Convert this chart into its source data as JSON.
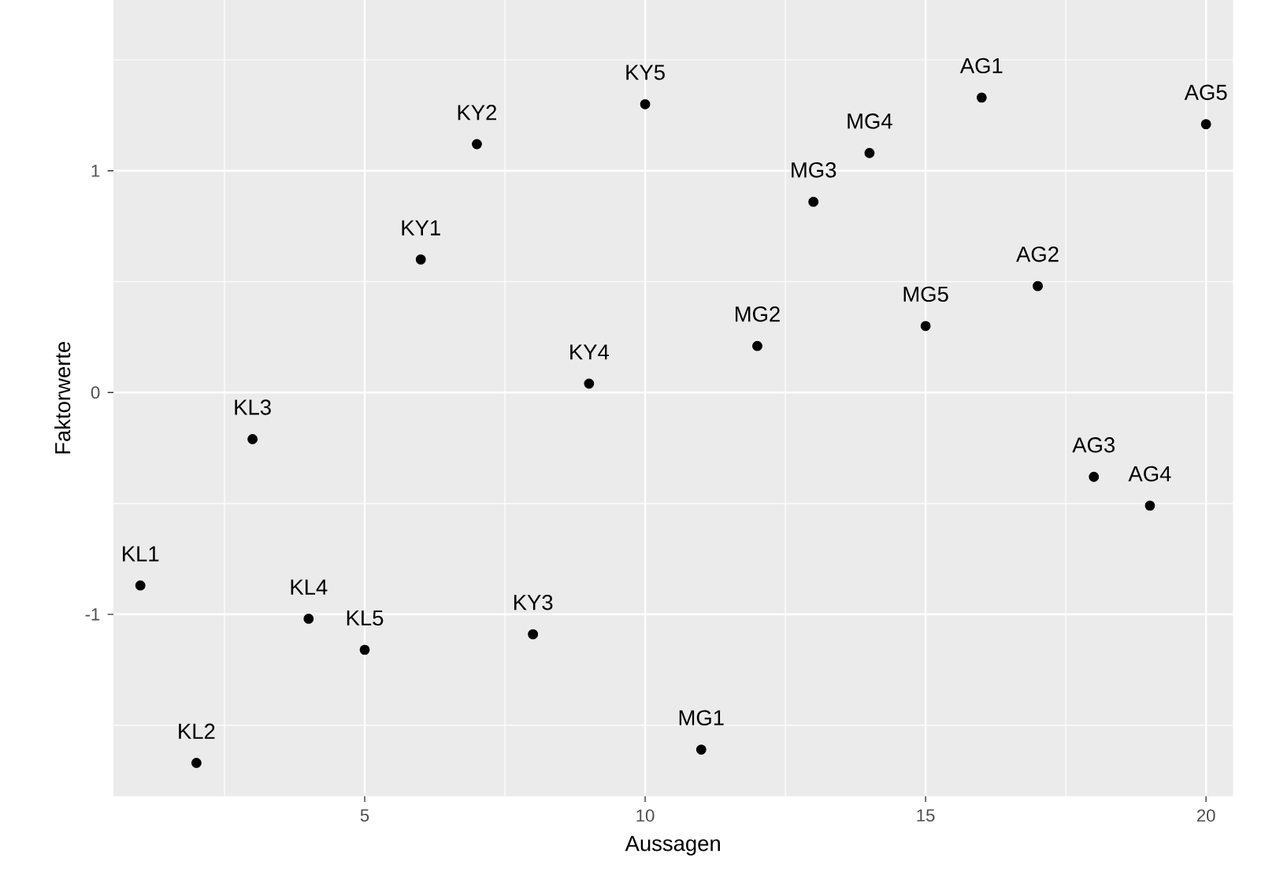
{
  "chart_data": {
    "type": "scatter",
    "xlabel": "Aussagen",
    "ylabel": "Faktorwerte",
    "x": [
      1,
      2,
      3,
      4,
      5,
      6,
      7,
      8,
      9,
      10,
      11,
      12,
      13,
      14,
      15,
      16,
      17,
      18,
      19,
      20
    ],
    "series": [
      {
        "color": "#000000",
        "values": [
          -0.87,
          -1.67,
          -0.21,
          -1.02,
          -1.16,
          0.6,
          1.12,
          -1.09,
          0.04,
          1.3,
          -1.61,
          0.21,
          0.86,
          1.08,
          0.3,
          1.33,
          0.48,
          -0.38,
          -0.51,
          1.21
        ]
      }
    ],
    "xlim": [
      0.52,
      20.48
    ],
    "ylim": [
      -1.82,
      1.77
    ],
    "xticks": [
      5,
      10,
      15,
      20
    ],
    "yticks": [
      -1,
      0,
      1
    ],
    "grid": true,
    "marker": "circle",
    "annotations": [
      {
        "text": "KL1",
        "x": 1,
        "y": -0.87
      },
      {
        "text": "KL2",
        "x": 2,
        "y": -1.67
      },
      {
        "text": "KL3",
        "x": 3,
        "y": -0.21
      },
      {
        "text": "KL4",
        "x": 4,
        "y": -1.02
      },
      {
        "text": "KL5",
        "x": 5,
        "y": -1.16
      },
      {
        "text": "KY1",
        "x": 6,
        "y": 0.6
      },
      {
        "text": "KY2",
        "x": 7,
        "y": 1.12
      },
      {
        "text": "KY3",
        "x": 8,
        "y": -1.09
      },
      {
        "text": "KY4",
        "x": 9,
        "y": 0.04
      },
      {
        "text": "KY5",
        "x": 10,
        "y": 1.3
      },
      {
        "text": "MG1",
        "x": 11,
        "y": -1.61
      },
      {
        "text": "MG2",
        "x": 12,
        "y": 0.21
      },
      {
        "text": "MG3",
        "x": 13,
        "y": 0.86
      },
      {
        "text": "MG4",
        "x": 14,
        "y": 1.08
      },
      {
        "text": "MG5",
        "x": 15,
        "y": 0.3
      },
      {
        "text": "AG1",
        "x": 16,
        "y": 1.33
      },
      {
        "text": "AG2",
        "x": 17,
        "y": 0.48
      },
      {
        "text": "AG3",
        "x": 18,
        "y": -0.38
      },
      {
        "text": "AG4",
        "x": 19,
        "y": -0.51
      },
      {
        "text": "AG5",
        "x": 20,
        "y": 1.21
      }
    ]
  }
}
